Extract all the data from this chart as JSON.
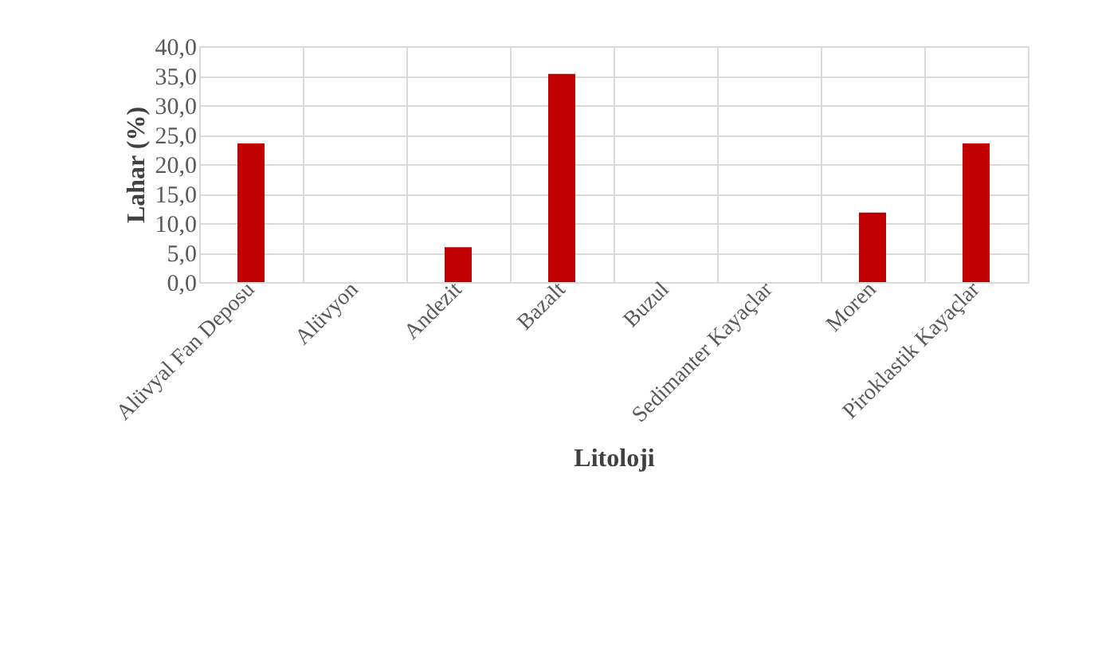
{
  "chart_data": {
    "type": "bar",
    "xlabel": "Litoloji",
    "ylabel": "Lahar (%)",
    "categories": [
      "Alüvyal Fan Deposu",
      "Alüvyon",
      "Andezit",
      "Bazalt",
      "Buzul",
      "Sedimanter Kayaçlar",
      "Moren",
      "Piroklastik Kayaçlar"
    ],
    "values": [
      23.5,
      0,
      5.9,
      35.3,
      0,
      0,
      11.8,
      23.5
    ],
    "color": "#c00000",
    "ylim": [
      0,
      40
    ],
    "yticks": [
      {
        "value": 0,
        "label": "0,0"
      },
      {
        "value": 5,
        "label": "5,0"
      },
      {
        "value": 10,
        "label": "10,0"
      },
      {
        "value": 15,
        "label": "15,0"
      },
      {
        "value": 20,
        "label": "20,0"
      },
      {
        "value": 25,
        "label": "25,0"
      },
      {
        "value": 30,
        "label": "30,0"
      },
      {
        "value": 35,
        "label": "35,0"
      },
      {
        "value": 40,
        "label": "40,0"
      }
    ],
    "grid": true
  }
}
